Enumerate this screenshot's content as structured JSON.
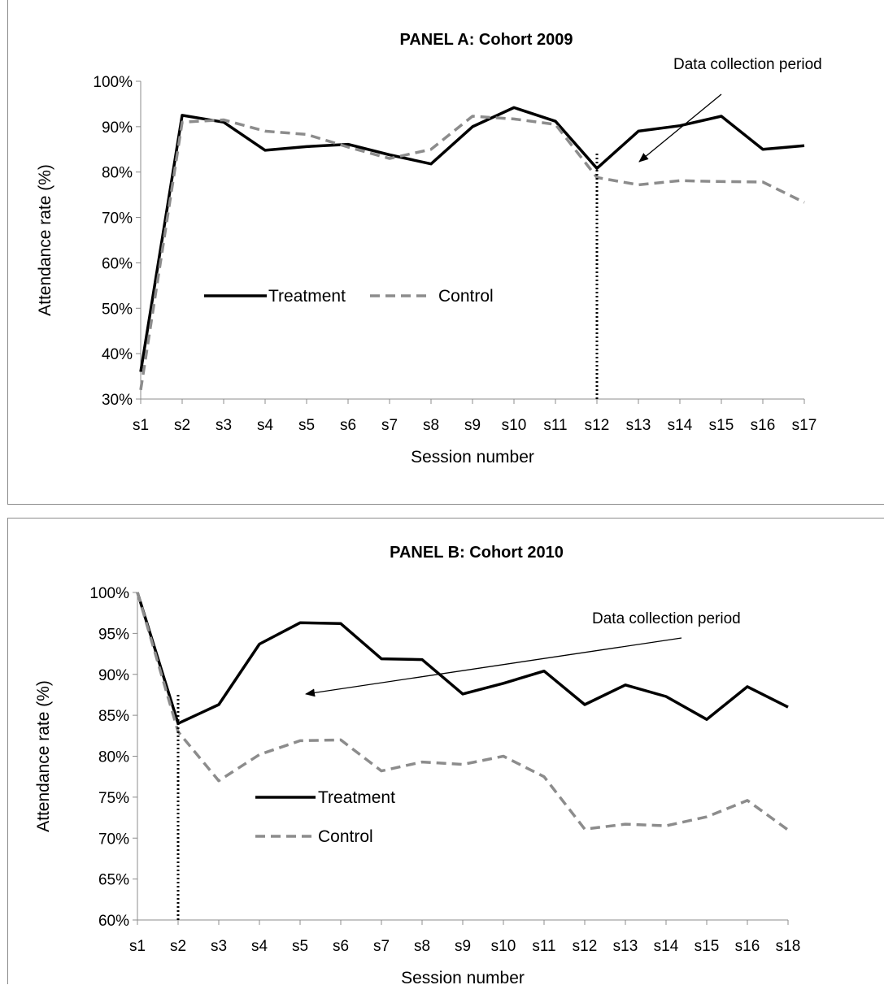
{
  "chart_data": [
    {
      "type": "line",
      "title": "PANEL A: Cohort 2009",
      "xlabel": "Session number",
      "ylabel": "Attendance rate (%)",
      "ylim": [
        0.3,
        1.0
      ],
      "y_ticks": [
        "30%",
        "40%",
        "50%",
        "60%",
        "70%",
        "80%",
        "90%",
        "100%"
      ],
      "categories": [
        "s1",
        "s2",
        "s3",
        "s4",
        "s5",
        "s6",
        "s7",
        "s8",
        "s9",
        "s10",
        "s11",
        "s12",
        "s13",
        "s14",
        "s15",
        "s16",
        "s17"
      ],
      "series": [
        {
          "name": "Treatment",
          "values": [
            0.36,
            0.925,
            0.91,
            0.848,
            0.856,
            0.861,
            0.838,
            0.818,
            0.9,
            0.942,
            0.912,
            0.808,
            0.89,
            0.902,
            0.923,
            0.85,
            0.858
          ]
        },
        {
          "name": "Control",
          "values": [
            0.32,
            0.91,
            0.915,
            0.89,
            0.883,
            0.855,
            0.83,
            0.85,
            0.923,
            0.917,
            0.905,
            0.788,
            0.772,
            0.781,
            0.779,
            0.778,
            0.733
          ]
        }
      ],
      "annotation": {
        "text": "Data collection period",
        "marker_at": "s12"
      },
      "legend_position": "center-left",
      "grid": false
    },
    {
      "type": "line",
      "title": "PANEL B: Cohort 2010",
      "xlabel": "Session number",
      "ylabel": "Attendance rate (%)",
      "ylim": [
        0.6,
        1.0
      ],
      "y_ticks": [
        "60%",
        "65%",
        "70%",
        "75%",
        "80%",
        "85%",
        "90%",
        "95%",
        "100%"
      ],
      "categories": [
        "s1",
        "s2",
        "s3",
        "s4",
        "s5",
        "s6",
        "s7",
        "s8",
        "s9",
        "s10",
        "s11",
        "s12",
        "s13",
        "s14",
        "s15",
        "s16",
        "s18"
      ],
      "series": [
        {
          "name": "Treatment",
          "values": [
            1.0,
            0.84,
            0.863,
            0.937,
            0.963,
            0.962,
            0.919,
            0.918,
            0.876,
            0.889,
            0.904,
            0.863,
            0.887,
            0.873,
            0.845,
            0.885,
            0.86
          ]
        },
        {
          "name": "Control",
          "values": [
            1.0,
            0.83,
            0.77,
            0.802,
            0.819,
            0.82,
            0.782,
            0.793,
            0.79,
            0.8,
            0.775,
            0.711,
            0.717,
            0.715,
            0.726,
            0.746,
            0.71
          ]
        }
      ],
      "annotation": {
        "text": "Data collection period",
        "marker_at": "s2"
      },
      "legend_position": "center-left",
      "grid": false
    }
  ],
  "colors": {
    "treatment": "#000000",
    "control": "#8c8c8c",
    "axis": "#8c8c8c"
  }
}
